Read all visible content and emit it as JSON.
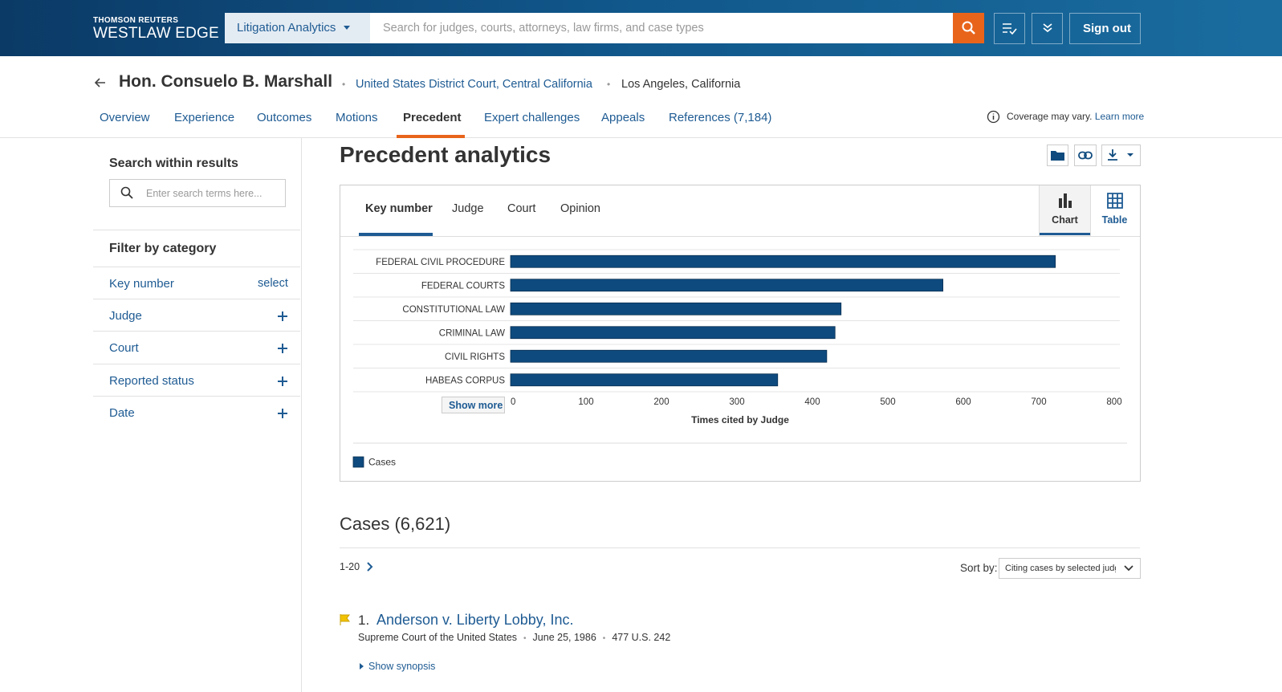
{
  "header": {
    "brand_top": "THOMSON REUTERS",
    "brand": "WESTLAW EDGE",
    "product": "Litigation Analytics",
    "search_placeholder": "Search for judges, courts, attorneys, law firms, and case types",
    "sign_out": "Sign out"
  },
  "profile": {
    "name": "Hon. Consuelo B. Marshall",
    "court": "United States District Court, Central California",
    "location": "Los Angeles, California"
  },
  "nav": {
    "tabs": [
      "Overview",
      "Experience",
      "Outcomes",
      "Motions",
      "Precedent",
      "Expert challenges",
      "Appeals",
      "References (7,184)"
    ]
  },
  "coverage": {
    "text": "Coverage may vary.",
    "link": "Learn more"
  },
  "sidebar": {
    "search_title": "Search within results",
    "search_placeholder": "Enter search terms here...",
    "filter_title": "Filter by category",
    "filters": [
      "Key number",
      "Judge",
      "Court",
      "Reported status",
      "Date"
    ],
    "select": "select"
  },
  "section": {
    "title": "Precedent analytics",
    "tabs": [
      "Key number",
      "Judge",
      "Court",
      "Opinion"
    ],
    "views": [
      "Chart",
      "Table"
    ],
    "show_more": "Show more"
  },
  "chart_data": {
    "type": "bar",
    "orientation": "horizontal",
    "categories": [
      "FEDERAL CIVIL PROCEDURE",
      "FEDERAL COURTS",
      "CONSTITUTIONAL LAW",
      "CRIMINAL LAW",
      "CIVIL RIGHTS",
      "HABEAS CORPUS"
    ],
    "series": [
      {
        "name": "Cases",
        "color": "#0e4a7e",
        "values": [
          722,
          573,
          438,
          430,
          419,
          354
        ]
      }
    ],
    "xlabel": "Times cited by Judge",
    "xlim": [
      0,
      800
    ],
    "xticks": [
      0,
      100,
      200,
      300,
      400,
      500,
      600,
      700,
      800
    ],
    "legend": "bottom-left"
  },
  "cases": {
    "title": "Cases (6,621)",
    "range": "1-20",
    "sort_label": "Sort by:",
    "sort_value": "Citing cases by selected judg",
    "items": [
      {
        "number": "1.",
        "title": "Anderson v. Liberty Lobby, Inc.",
        "court": "Supreme Court of the United States",
        "date": "June 25, 1986",
        "citation": "477 U.S. 242",
        "synopsis": "Show synopsis"
      }
    ]
  }
}
